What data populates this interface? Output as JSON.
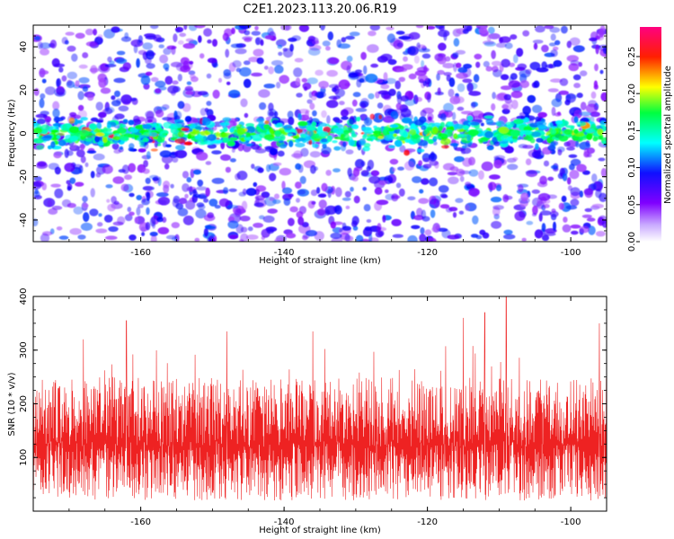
{
  "title": "C2E1.2023.113.20.06.R19",
  "chart_data": [
    {
      "type": "heatmap",
      "xlabel": "Height of straight line (km)",
      "ylabel": "Frequency (Hz)",
      "xlim": [
        -175,
        -95
      ],
      "ylim": [
        -50,
        50
      ],
      "xticks": [
        -160,
        -140,
        -120,
        -100
      ],
      "yticks": [
        -40,
        -20,
        0,
        20,
        40
      ],
      "band": {
        "center_frequency_hz": 0,
        "approx_halfwidth_hz": 10,
        "peak_amplitude": 0.28,
        "background_amplitude": 0.03
      },
      "colorbar": {
        "label": "Normalized spectral amplitude",
        "range": [
          0,
          0.29
        ],
        "ticks": [
          "0.00",
          "0.05",
          "0.10",
          "0.15",
          "0.20",
          "0.25"
        ],
        "colors": [
          "#ffffff",
          "#8000ff",
          "#0000ff",
          "#00ffff",
          "#00ff00",
          "#ffff00",
          "#ff0000",
          "#ff0080"
        ]
      },
      "grid": false
    },
    {
      "type": "line",
      "xlabel": "Height of straight line (km)",
      "ylabel": "SNR (10 * v/v)",
      "xlim": [
        -175,
        -95
      ],
      "ylim": [
        0,
        400
      ],
      "xticks": [
        -160,
        -140,
        -120,
        -100
      ],
      "yticks": [
        100,
        200,
        300,
        400
      ],
      "color": "#ee2222",
      "series_summary": {
        "typical_low": 20,
        "typical_mean": 120,
        "typical_high": 250,
        "max": 400
      },
      "peaks": [
        {
          "x": -168,
          "y": 320
        },
        {
          "x": -162,
          "y": 355
        },
        {
          "x": -148,
          "y": 335
        },
        {
          "x": -136,
          "y": 335
        },
        {
          "x": -115,
          "y": 360
        },
        {
          "x": -112,
          "y": 370
        },
        {
          "x": -109,
          "y": 400
        },
        {
          "x": -96,
          "y": 350
        }
      ],
      "grid": false
    }
  ]
}
